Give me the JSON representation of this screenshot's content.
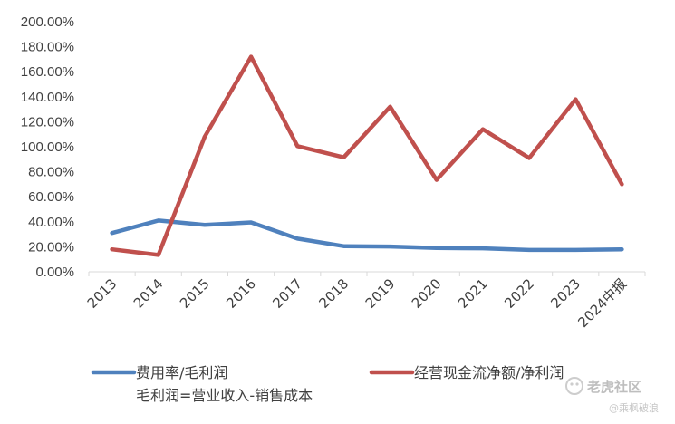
{
  "chart_data": {
    "type": "line",
    "categories": [
      "2013",
      "2014",
      "2015",
      "2016",
      "2017",
      "2018",
      "2019",
      "2020",
      "2021",
      "2022",
      "2023",
      "2024中报"
    ],
    "ylim": [
      0,
      200
    ],
    "yticks": [
      "0.00%",
      "20.00%",
      "40.00%",
      "60.00%",
      "80.00%",
      "100.00%",
      "120.00%",
      "140.00%",
      "160.00%",
      "180.00%",
      "200.00%"
    ],
    "series": [
      {
        "name": "费用率/毛利润",
        "note": "毛利润=营业收入-销售成本",
        "color": "#4f81bd",
        "values": [
          31,
          41,
          37.5,
          39.5,
          26.5,
          20.5,
          20.2,
          19,
          18.8,
          17.5,
          17.5,
          18
        ]
      },
      {
        "name": "经营现金流净额/净利润",
        "color": "#c0504d",
        "values": [
          18,
          13.5,
          108,
          172,
          100.5,
          91.5,
          132,
          73.5,
          114,
          91,
          138,
          70
        ]
      }
    ],
    "legend_position": "bottom",
    "grid": false
  },
  "watermark": {
    "logo_text": "老虎社区",
    "sub_text": "@乘枫破浪"
  }
}
